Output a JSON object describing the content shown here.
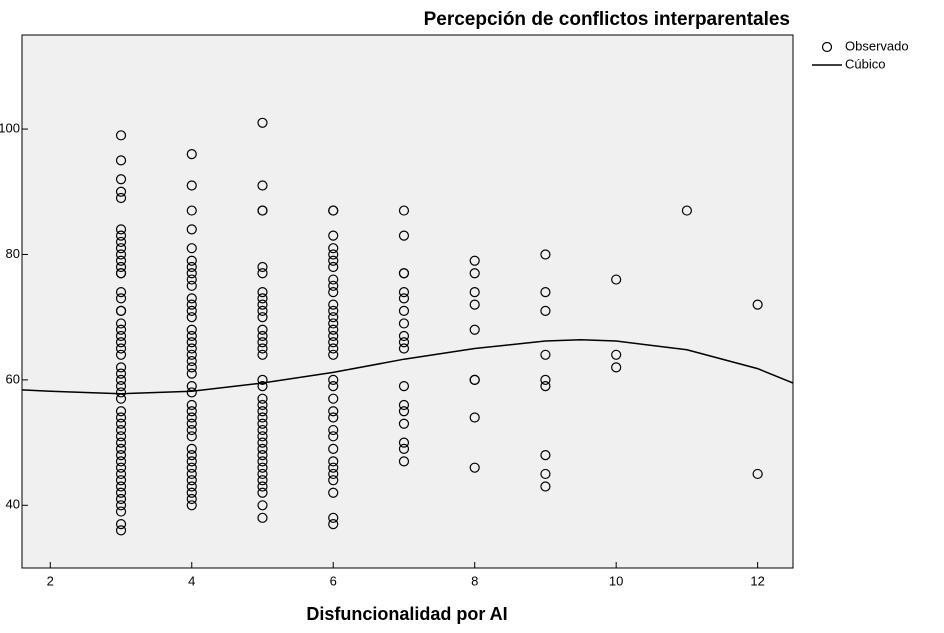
{
  "chart_data": {
    "type": "scatter",
    "title": "Percepción de conflictos interparentales",
    "xlabel": "Disfuncionalidad por AI",
    "xlim": [
      1.6,
      12.5
    ],
    "xticks": [
      2,
      4,
      6,
      8,
      10,
      12
    ],
    "ylim": [
      30,
      115
    ],
    "yticks": [
      40,
      60,
      80,
      100
    ],
    "background": "#f0f0f0",
    "legend": "outside-right",
    "series": [
      {
        "name": "Observado",
        "style": "marker",
        "color": "#000000",
        "x": [
          3,
          3,
          3,
          3,
          3,
          3,
          3,
          3,
          3,
          3,
          3,
          3,
          3,
          3,
          3,
          3,
          3,
          3,
          3,
          3,
          3,
          3,
          3,
          3,
          3,
          3,
          3,
          3,
          3,
          3,
          3,
          3,
          3,
          3,
          3,
          3,
          3,
          3,
          3,
          3,
          3,
          3,
          3,
          3,
          3,
          3,
          3,
          3,
          3,
          4,
          4,
          4,
          4,
          4,
          4,
          4,
          4,
          4,
          4,
          4,
          4,
          4,
          4,
          4,
          4,
          4,
          4,
          4,
          4,
          4,
          4,
          4,
          4,
          4,
          4,
          4,
          4,
          4,
          4,
          4,
          4,
          4,
          4,
          4,
          4,
          4,
          4,
          4,
          4,
          5,
          5,
          5,
          5,
          5,
          5,
          5,
          5,
          5,
          5,
          5,
          5,
          5,
          5,
          5,
          5,
          5,
          5,
          5,
          5,
          5,
          5,
          5,
          5,
          5,
          5,
          5,
          5,
          5,
          5,
          5,
          5,
          5,
          5,
          5,
          5,
          6,
          6,
          6,
          6,
          6,
          6,
          6,
          6,
          6,
          6,
          6,
          6,
          6,
          6,
          6,
          6,
          6,
          6,
          6,
          6,
          6,
          6,
          6,
          6,
          6,
          6,
          6,
          6,
          6,
          6,
          6,
          6,
          6,
          6,
          7,
          7,
          7,
          7,
          7,
          7,
          7,
          7,
          7,
          7,
          7,
          7,
          7,
          7,
          7,
          7,
          7,
          7,
          8,
          8,
          8,
          8,
          8,
          8,
          8,
          8,
          8,
          9,
          9,
          9,
          9,
          9,
          9,
          9,
          9,
          9,
          10,
          10,
          10,
          11,
          12,
          12
        ],
        "values": [
          99,
          95,
          92,
          90,
          89,
          84,
          83,
          82,
          81,
          80,
          79,
          78,
          77,
          77,
          74,
          73,
          71,
          71,
          69,
          68,
          67,
          66,
          65,
          64,
          62,
          61,
          60,
          59,
          58,
          57,
          55,
          54,
          53,
          52,
          51,
          50,
          49,
          48,
          47,
          46,
          45,
          44,
          43,
          42,
          41,
          40,
          39,
          37,
          36,
          96,
          91,
          87,
          84,
          81,
          79,
          78,
          77,
          76,
          75,
          73,
          72,
          71,
          70,
          68,
          67,
          66,
          65,
          64,
          63,
          62,
          61,
          59,
          58,
          56,
          55,
          54,
          53,
          52,
          51,
          49,
          48,
          47,
          46,
          45,
          44,
          43,
          42,
          41,
          40,
          101,
          91,
          87,
          87,
          78,
          77,
          74,
          73,
          72,
          71,
          70,
          68,
          67,
          66,
          65,
          64,
          60,
          59,
          57,
          56,
          55,
          54,
          53,
          52,
          51,
          50,
          49,
          48,
          47,
          46,
          45,
          44,
          43,
          42,
          40,
          38,
          87,
          87,
          83,
          81,
          80,
          79,
          78,
          76,
          75,
          74,
          72,
          71,
          70,
          69,
          68,
          67,
          66,
          65,
          64,
          60,
          59,
          57,
          55,
          54,
          52,
          51,
          49,
          47,
          46,
          45,
          44,
          42,
          38,
          37,
          87,
          83,
          77,
          77,
          74,
          73,
          71,
          69,
          67,
          66,
          65,
          59,
          56,
          55,
          53,
          50,
          49,
          47,
          79,
          77,
          74,
          72,
          68,
          60,
          60,
          54,
          46,
          80,
          74,
          71,
          64,
          60,
          59,
          48,
          45,
          43,
          76,
          64,
          62,
          87,
          72,
          45
        ]
      },
      {
        "name": "Cúbico",
        "style": "line",
        "color": "#000000",
        "x": [
          1.6,
          2,
          3,
          4,
          5,
          6,
          7,
          8,
          9,
          9.5,
          10,
          11,
          12,
          12.5
        ],
        "values": [
          58.4,
          58.2,
          57.8,
          58.2,
          59.5,
          61.2,
          63.3,
          65.0,
          66.2,
          66.4,
          66.2,
          64.8,
          61.8,
          59.5
        ]
      }
    ]
  }
}
